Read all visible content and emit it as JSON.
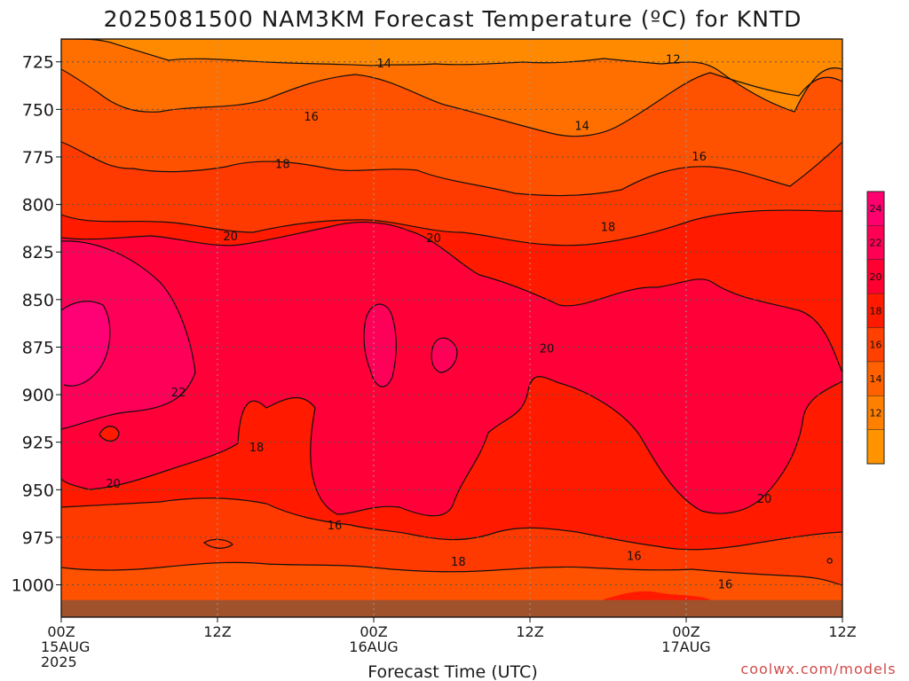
{
  "page": {
    "title": "2025081500 NAM3KM Forecast Temperature (ºC) for KNTD",
    "credit": "coolwx.com/models"
  },
  "chart_data": {
    "type": "contour",
    "title": "2025081500 NAM3KM Forecast Temperature (ºC) for KNTD",
    "xlabel": "Forecast Time (UTC)",
    "ylabel": "",
    "x_ticks": [
      {
        "hour": 0,
        "lines": [
          "00Z",
          "15AUG",
          "2025"
        ]
      },
      {
        "hour": 12,
        "lines": [
          "12Z"
        ]
      },
      {
        "hour": 24,
        "lines": [
          "00Z",
          "16AUG"
        ]
      },
      {
        "hour": 36,
        "lines": [
          "12Z"
        ]
      },
      {
        "hour": 48,
        "lines": [
          "00Z",
          "17AUG"
        ]
      },
      {
        "hour": 60,
        "lines": [
          "12Z"
        ]
      }
    ],
    "y_ticks": [
      725,
      750,
      775,
      800,
      825,
      850,
      875,
      900,
      925,
      950,
      975,
      1000
    ],
    "xlim": [
      0,
      60
    ],
    "ylim": [
      1017,
      713
    ],
    "surface_pressure_hPa": 1008,
    "contour_levels": [
      12,
      14,
      16,
      18,
      20,
      22
    ],
    "contour_labels": [
      {
        "text": "14",
        "hour": 24.8,
        "hPa": 726
      },
      {
        "text": "12",
        "hour": 47.0,
        "hPa": 724
      },
      {
        "text": "16",
        "hour": 19.2,
        "hPa": 754
      },
      {
        "text": "14",
        "hour": 40.0,
        "hPa": 759
      },
      {
        "text": "18",
        "hour": 17.0,
        "hPa": 779
      },
      {
        "text": "16",
        "hour": 49.0,
        "hPa": 775
      },
      {
        "text": "18",
        "hour": 42.0,
        "hPa": 812
      },
      {
        "text": "20",
        "hour": 13.0,
        "hPa": 817
      },
      {
        "text": "20",
        "hour": 28.6,
        "hPa": 818
      },
      {
        "text": "20",
        "hour": 37.3,
        "hPa": 876
      },
      {
        "text": "22",
        "hour": 9.0,
        "hPa": 899
      },
      {
        "text": "18",
        "hour": 15.0,
        "hPa": 928
      },
      {
        "text": "20",
        "hour": 4.0,
        "hPa": 947
      },
      {
        "text": "16",
        "hour": 21.0,
        "hPa": 969
      },
      {
        "text": "18",
        "hour": 30.5,
        "hPa": 988
      },
      {
        "text": "20",
        "hour": 54.0,
        "hPa": 955
      },
      {
        "text": "16",
        "hour": 44.0,
        "hPa": 985
      },
      {
        "text": "16",
        "hour": 51.0,
        "hPa": 1000
      }
    ],
    "colorbar": {
      "labels": [
        "24",
        "22",
        "20",
        "18",
        "16",
        "14",
        "12"
      ],
      "colors": [
        "#ff006e",
        "#ff0055",
        "#ff0030",
        "#ff1a00",
        "#ff4000",
        "#ff6000",
        "#ff7f00",
        "#ff9400"
      ]
    },
    "colors": {
      "surface": "#a0522d",
      "grid": "#555555"
    }
  }
}
